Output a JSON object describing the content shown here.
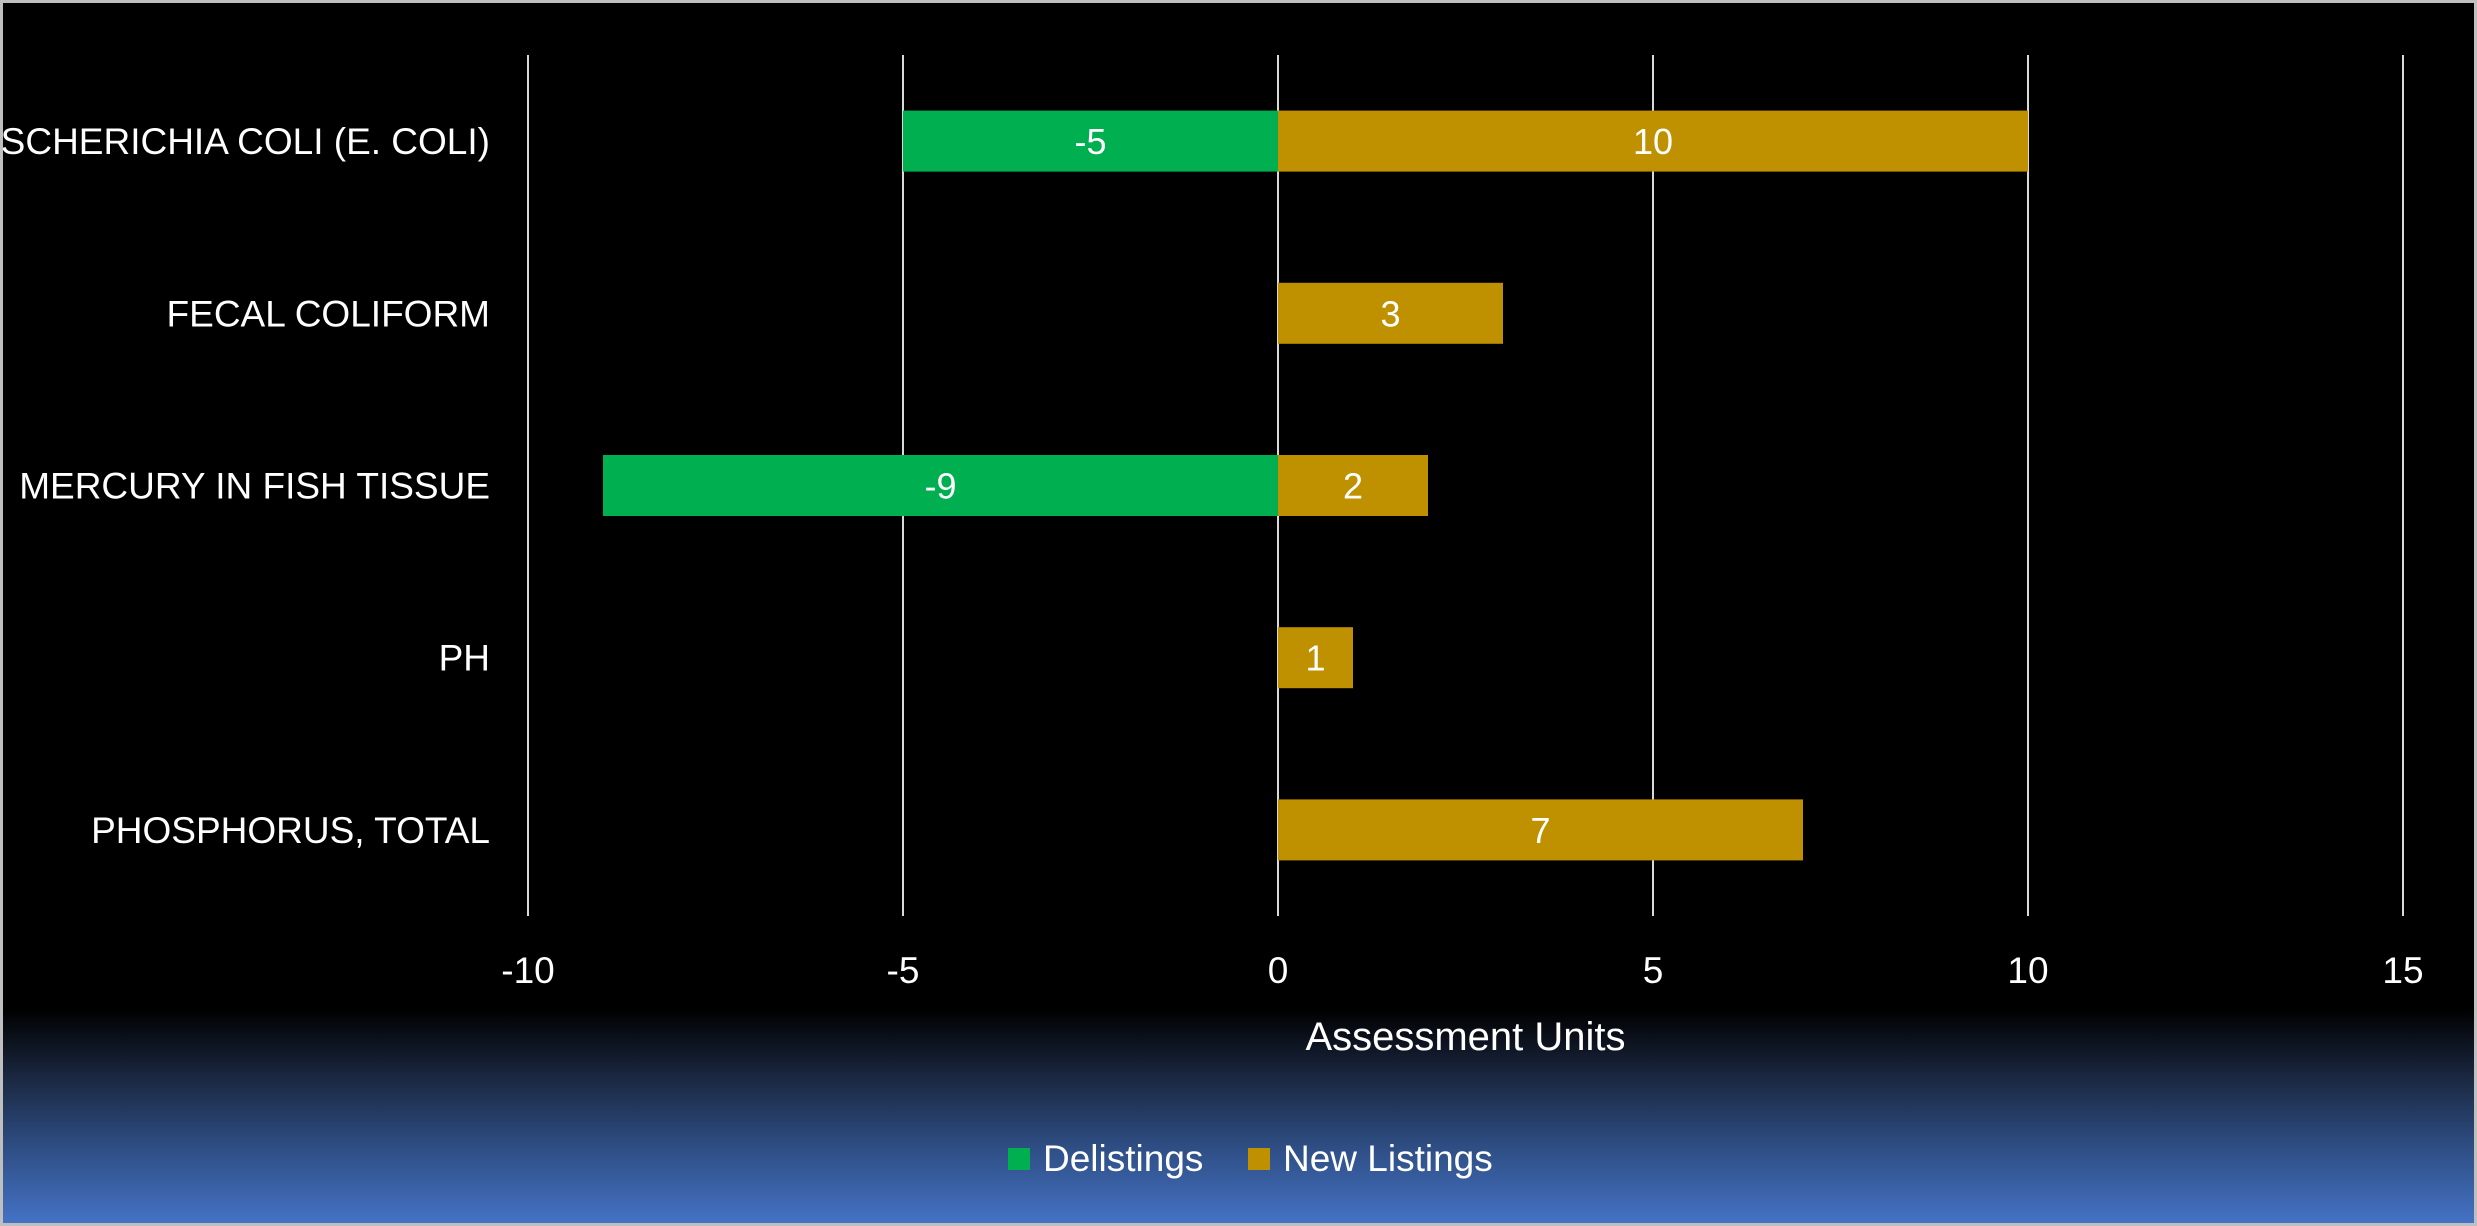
{
  "chart_data": {
    "type": "bar",
    "orientation": "horizontal",
    "stacked": true,
    "categories": [
      "ESCHERICHIA COLI (E. COLI)",
      "FECAL COLIFORM",
      "MERCURY IN FISH TISSUE",
      "PH",
      "PHOSPHORUS, TOTAL"
    ],
    "series": [
      {
        "name": "Delistings",
        "color": "#00b050",
        "values": [
          -5,
          null,
          -9,
          null,
          null
        ]
      },
      {
        "name": "New Listings",
        "color": "#bf9000",
        "values": [
          10,
          3,
          2,
          1,
          7
        ]
      }
    ],
    "xlabel": "Assessment Units",
    "ylabel": "",
    "xlim": [
      -10,
      15
    ],
    "xticks": [
      -10,
      -5,
      0,
      5,
      10,
      15
    ],
    "grid": true,
    "data_labels": true,
    "legend": "bottom-center",
    "background": "#000000",
    "text_color": "#ffffff"
  }
}
